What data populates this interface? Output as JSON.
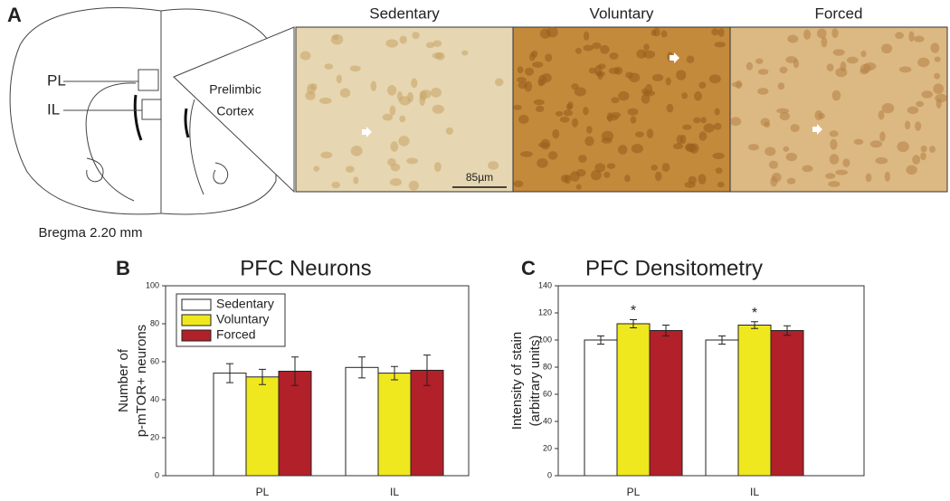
{
  "panel_a": {
    "label": "A",
    "regions": [
      "PL",
      "IL"
    ],
    "inset_label": [
      "Prelimbic",
      "Cortex"
    ],
    "bregma": "Bregma 2.20 mm",
    "micrographs": [
      "Sedentary",
      "Voluntary",
      "Forced"
    ],
    "scale_bar": "85µm"
  },
  "chart_data": [
    {
      "type": "bar",
      "panel": "B",
      "title": "PFC Neurons",
      "ylabel": [
        "Number of",
        "p-mTOR+ neurons"
      ],
      "categories": [
        "PL",
        "IL"
      ],
      "ylim": [
        0,
        100
      ],
      "yticks": [
        0,
        20,
        40,
        60,
        80,
        100
      ],
      "legend": "upper left",
      "series": [
        {
          "name": "Sedentary",
          "color": "#ffffff",
          "values": [
            54,
            57
          ],
          "errors": [
            5,
            5.5
          ]
        },
        {
          "name": "Voluntary",
          "color": "#f0e81e",
          "values": [
            52,
            54
          ],
          "errors": [
            4,
            3.5
          ]
        },
        {
          "name": "Forced",
          "color": "#b2202a",
          "values": [
            55,
            55.5
          ],
          "errors": [
            7.5,
            8
          ]
        }
      ]
    },
    {
      "type": "bar",
      "panel": "C",
      "title": "PFC Densitometry",
      "ylabel": [
        "Intensity of stain",
        "(arbitrary units)"
      ],
      "categories": [
        "PL",
        "IL"
      ],
      "ylim": [
        0,
        140
      ],
      "yticks": [
        0,
        20,
        40,
        60,
        80,
        100,
        120,
        140
      ],
      "series": [
        {
          "name": "Sedentary",
          "color": "#ffffff",
          "values": [
            100,
            100
          ],
          "errors": [
            3,
            3
          ]
        },
        {
          "name": "Voluntary",
          "color": "#f0e81e",
          "values": [
            112,
            111
          ],
          "errors": [
            3,
            2.5
          ]
        },
        {
          "name": "Forced",
          "color": "#b2202a",
          "values": [
            107,
            107
          ],
          "errors": [
            4,
            3.5
          ]
        }
      ],
      "annotations": [
        {
          "text": "*",
          "category": "PL",
          "series": "Voluntary"
        },
        {
          "text": "*",
          "category": "IL",
          "series": "Voluntary"
        }
      ]
    }
  ]
}
